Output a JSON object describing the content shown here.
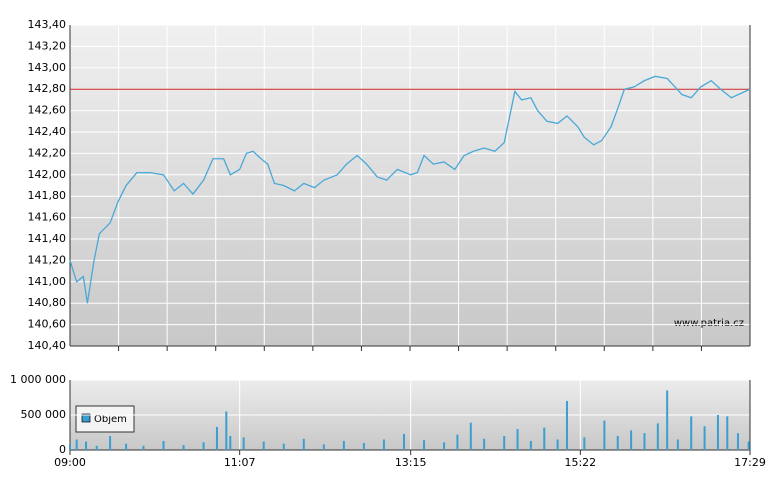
{
  "chart_data": [
    {
      "type": "line",
      "color": "#4aa8d8",
      "reference_line": 142.8,
      "reference_color": "#cc2222",
      "watermark": "www.patria.cz",
      "xlim": [
        "09:00",
        "17:29"
      ],
      "ylim": [
        140.4,
        143.4
      ],
      "yticks": [
        {
          "value": 140.4,
          "label": "140,40"
        },
        {
          "value": 140.6,
          "label": "140,60"
        },
        {
          "value": 140.8,
          "label": "140,80"
        },
        {
          "value": 141.0,
          "label": "141,00"
        },
        {
          "value": 141.2,
          "label": "141,20"
        },
        {
          "value": 141.4,
          "label": "141,40"
        },
        {
          "value": 141.6,
          "label": "141,60"
        },
        {
          "value": 141.8,
          "label": "141,80"
        },
        {
          "value": 142.0,
          "label": "142,00"
        },
        {
          "value": 142.2,
          "label": "142,20"
        },
        {
          "value": 142.4,
          "label": "142,40"
        },
        {
          "value": 142.6,
          "label": "142,60"
        },
        {
          "value": 142.8,
          "label": "142,80"
        },
        {
          "value": 143.0,
          "label": "143,00"
        },
        {
          "value": 143.2,
          "label": "143,20"
        },
        {
          "value": 143.4,
          "label": "143,40"
        }
      ],
      "x": [
        "09:00",
        "09:05",
        "09:10",
        "09:13",
        "09:18",
        "09:22",
        "09:30",
        "09:36",
        "09:42",
        "09:50",
        "10:00",
        "10:10",
        "10:18",
        "10:25",
        "10:32",
        "10:40",
        "10:47",
        "10:55",
        "11:00",
        "11:07",
        "11:12",
        "11:17",
        "11:23",
        "11:28",
        "11:33",
        "11:40",
        "11:48",
        "11:55",
        "12:03",
        "12:10",
        "12:20",
        "12:27",
        "12:35",
        "12:42",
        "12:50",
        "12:57",
        "13:05",
        "13:15",
        "13:20",
        "13:25",
        "13:32",
        "13:40",
        "13:48",
        "13:55",
        "14:02",
        "14:10",
        "14:18",
        "14:25",
        "14:30",
        "14:33",
        "14:38",
        "14:45",
        "14:50",
        "14:57",
        "15:05",
        "15:12",
        "15:20",
        "15:25",
        "15:32",
        "15:38",
        "15:45",
        "15:50",
        "15:55",
        "16:02",
        "16:10",
        "16:18",
        "16:27",
        "16:33",
        "16:38",
        "16:45",
        "16:52",
        "17:00",
        "17:07",
        "17:15",
        "17:22",
        "17:29"
      ],
      "values": [
        141.2,
        141.0,
        141.05,
        140.8,
        141.2,
        141.45,
        141.55,
        141.75,
        141.9,
        142.02,
        142.02,
        142.0,
        141.85,
        141.92,
        141.82,
        141.95,
        142.15,
        142.15,
        142.0,
        142.05,
        142.2,
        142.22,
        142.15,
        142.1,
        141.92,
        141.9,
        141.85,
        141.92,
        141.88,
        141.95,
        142.0,
        142.1,
        142.18,
        142.1,
        141.98,
        141.95,
        142.05,
        142.0,
        142.02,
        142.18,
        142.1,
        142.12,
        142.05,
        142.18,
        142.22,
        142.25,
        142.22,
        142.3,
        142.6,
        142.78,
        142.7,
        142.72,
        142.6,
        142.5,
        142.48,
        142.55,
        142.45,
        142.35,
        142.28,
        142.32,
        142.45,
        142.62,
        142.8,
        142.82,
        142.88,
        142.92,
        142.9,
        142.82,
        142.75,
        142.72,
        142.82,
        142.88,
        142.8,
        142.72,
        142.76,
        142.8
      ]
    },
    {
      "type": "bar",
      "xlim": [
        "09:00",
        "17:29"
      ],
      "xticks": [
        "09:00",
        "11:07",
        "13:15",
        "15:22",
        "17:29"
      ],
      "ylim": [
        0,
        1000000
      ],
      "yticks": [
        0,
        {
          "value": 500000,
          "label": "500 000"
        },
        {
          "value": 1000000,
          "label": "1 000 000"
        }
      ],
      "x": [
        "09:00",
        "09:05",
        "09:12",
        "09:20",
        "09:30",
        "09:42",
        "09:55",
        "10:10",
        "10:25",
        "10:40",
        "10:50",
        "10:57",
        "11:00",
        "11:10",
        "11:25",
        "11:40",
        "11:55",
        "12:10",
        "12:25",
        "12:40",
        "12:55",
        "13:10",
        "13:25",
        "13:40",
        "13:50",
        "14:00",
        "14:10",
        "14:25",
        "14:35",
        "14:45",
        "14:55",
        "15:05",
        "15:12",
        "15:25",
        "15:40",
        "15:50",
        "16:00",
        "16:10",
        "16:20",
        "16:27",
        "16:35",
        "16:45",
        "16:55",
        "17:05",
        "17:12",
        "17:20",
        "17:28"
      ],
      "series": [
        {
          "name": "Objem",
          "color": "#3a9fd0",
          "values": [
            80000,
            150000,
            120000,
            60000,
            200000,
            90000,
            60000,
            130000,
            70000,
            110000,
            330000,
            550000,
            200000,
            180000,
            120000,
            90000,
            160000,
            80000,
            130000,
            100000,
            150000,
            230000,
            140000,
            110000,
            220000,
            390000,
            160000,
            200000,
            300000,
            130000,
            320000,
            150000,
            700000,
            180000,
            420000,
            200000,
            280000,
            240000,
            380000,
            850000,
            150000,
            480000,
            340000,
            500000,
            480000,
            240000,
            120000
          ]
        }
      ]
    }
  ]
}
